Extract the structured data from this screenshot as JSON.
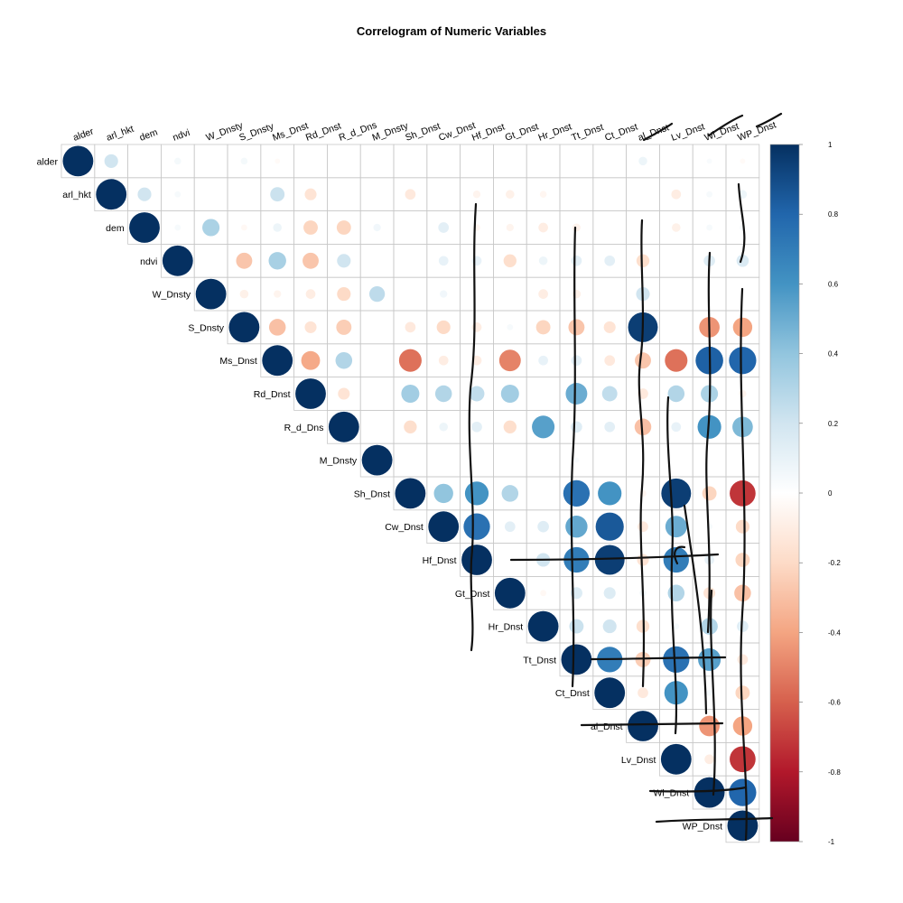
{
  "chart_data": {
    "type": "heatmap",
    "title": "Correlogram of Numeric Variables",
    "variables": [
      "alder",
      "arl_hkt",
      "dem",
      "ndvi",
      "W_Dnsty",
      "S_Dnsty",
      "Ms_Dnst",
      "Rd_Dnst",
      "R_d_Dns",
      "M_Dnsty",
      "Sh_Dnst",
      "Cw_Dnst",
      "Hf_Dnst",
      "Gt_Dnst",
      "Hr_Dnst",
      "Tt_Dnst",
      "Ct_Dnst",
      "al_Dnst",
      "Lv_Dnst",
      "Wl_Dnst",
      "WP_Dnst"
    ],
    "layout": "upper-triangle",
    "colorbar": {
      "range": [
        -1,
        1
      ],
      "ticks": [
        "1",
        "0.8",
        "0.6",
        "0.4",
        "0.2",
        "0",
        "-0.2",
        "-0.4",
        "-0.6",
        "-0.8",
        "-1"
      ]
    },
    "matrix": [
      [
        1,
        0.2,
        0,
        0.05,
        0,
        0.05,
        -0.03,
        0,
        0,
        0,
        0,
        0,
        0,
        0,
        0,
        0,
        0,
        0.08,
        0,
        0.03,
        -0.03
      ],
      [
        0.2,
        1,
        0.2,
        0.04,
        0,
        0,
        0.22,
        -0.15,
        0,
        0,
        -0.12,
        0,
        -0.06,
        -0.08,
        -0.05,
        0,
        0,
        0,
        -0.1,
        0.04,
        0.08
      ],
      [
        0,
        0.2,
        1,
        0.04,
        0.32,
        -0.04,
        0.08,
        -0.22,
        -0.22,
        0.06,
        0,
        0.12,
        -0.05,
        -0.06,
        -0.1,
        -0.07,
        0,
        0,
        -0.08,
        0.04,
        0.04
      ],
      [
        0.05,
        0.04,
        0.04,
        1,
        0,
        -0.28,
        0.33,
        -0.28,
        0.2,
        0,
        0,
        0.1,
        0.1,
        -0.18,
        0.08,
        0.12,
        0.12,
        -0.18,
        0,
        0.14,
        0.16
      ],
      [
        0,
        0,
        0.32,
        0,
        1,
        -0.08,
        -0.06,
        -0.1,
        -0.2,
        0.26,
        0,
        0.06,
        0,
        0,
        -0.1,
        -0.08,
        0,
        0.2,
        0,
        0,
        0
      ],
      [
        0.05,
        0,
        -0.04,
        -0.28,
        -0.08,
        1,
        -0.3,
        -0.15,
        -0.25,
        0,
        -0.12,
        -0.2,
        -0.1,
        0.04,
        -0.22,
        -0.28,
        -0.15,
        0.95,
        0,
        -0.45,
        -0.4
      ],
      [
        -0.03,
        0.22,
        0.08,
        0.33,
        -0.06,
        -0.3,
        1,
        -0.38,
        0.3,
        0,
        -0.55,
        -0.1,
        -0.1,
        -0.5,
        0.1,
        0.12,
        -0.12,
        -0.28,
        -0.55,
        0.82,
        0.8
      ],
      [
        0,
        -0.15,
        -0.22,
        -0.28,
        -0.1,
        -0.15,
        -0.38,
        1,
        -0.15,
        0,
        0.35,
        0.3,
        0.25,
        0.35,
        0,
        0.5,
        0.25,
        -0.12,
        0.3,
        0.32,
        -0.06
      ],
      [
        0,
        0,
        -0.22,
        0.2,
        -0.2,
        -0.25,
        0.3,
        -0.15,
        1,
        0,
        -0.18,
        0.08,
        0.12,
        -0.18,
        0.55,
        0.14,
        0.12,
        -0.3,
        0.1,
        0.6,
        0.45
      ],
      [
        0,
        0,
        0.06,
        0,
        0.26,
        0,
        0,
        0,
        0,
        1,
        0,
        0,
        0,
        0,
        0,
        0.03,
        0,
        0,
        0,
        0,
        0
      ],
      [
        0,
        -0.12,
        0,
        0,
        0,
        -0.12,
        -0.55,
        0.35,
        -0.18,
        0,
        1,
        0.4,
        0.6,
        0.3,
        0,
        0.75,
        0.6,
        -0.05,
        0.95,
        -0.22,
        -0.72
      ],
      [
        0,
        0,
        0.12,
        0.1,
        0.06,
        -0.2,
        -0.1,
        0.3,
        0.08,
        0,
        0.4,
        1,
        0.75,
        0.12,
        0.14,
        0.52,
        0.85,
        -0.12,
        0.5,
        0.04,
        -0.2
      ],
      [
        0,
        -0.06,
        -0.05,
        0.1,
        0,
        -0.1,
        -0.1,
        0.25,
        0.12,
        0,
        0.6,
        0.75,
        1,
        0,
        0.2,
        0.7,
        0.95,
        -0.15,
        0.7,
        0.1,
        -0.22
      ],
      [
        0,
        -0.08,
        -0.06,
        -0.18,
        0,
        0.04,
        -0.5,
        0.35,
        -0.18,
        0,
        0.3,
        0.12,
        0,
        1,
        -0.04,
        0.15,
        0.15,
        0.05,
        0.3,
        -0.15,
        -0.3
      ],
      [
        0,
        -0.05,
        -0.1,
        0.08,
        -0.1,
        -0.22,
        0.1,
        0,
        0.55,
        0,
        0,
        0.14,
        0.2,
        -0.04,
        1,
        0.22,
        0.2,
        -0.18,
        0.04,
        0.3,
        0.14
      ],
      [
        0,
        0,
        -0.07,
        0.12,
        -0.08,
        -0.28,
        0.12,
        0.5,
        0.14,
        0.03,
        0.75,
        0.52,
        0.7,
        0.15,
        0.22,
        1,
        0.7,
        -0.25,
        0.75,
        0.55,
        -0.12
      ],
      [
        0,
        0,
        0,
        0.12,
        0,
        -0.15,
        -0.12,
        0.25,
        0.12,
        0,
        0.6,
        0.85,
        0.95,
        0.15,
        0.2,
        0.7,
        1,
        -0.12,
        0.6,
        0.04,
        -0.22
      ],
      [
        0.08,
        0,
        0,
        -0.18,
        0.2,
        0.95,
        -0.28,
        -0.12,
        -0.3,
        0,
        -0.05,
        -0.12,
        -0.15,
        0.05,
        -0.18,
        -0.25,
        -0.12,
        1,
        0,
        -0.45,
        -0.4
      ],
      [
        0,
        -0.1,
        -0.08,
        0,
        0,
        0,
        -0.55,
        0.3,
        0.1,
        0,
        0.95,
        0.5,
        0.7,
        0.3,
        0.04,
        0.75,
        0.6,
        0,
        1,
        -0.1,
        -0.72
      ],
      [
        0.03,
        0.04,
        0.04,
        0.14,
        0,
        -0.45,
        0.82,
        0.32,
        0.6,
        0,
        -0.22,
        0.04,
        0.1,
        -0.15,
        0.3,
        0.55,
        0.04,
        -0.45,
        -0.1,
        1,
        0.8
      ],
      [
        -0.03,
        0.08,
        0.04,
        0.16,
        0,
        -0.4,
        0.8,
        -0.06,
        0.45,
        0,
        -0.72,
        -0.2,
        -0.22,
        -0.3,
        0.14,
        -0.12,
        -0.22,
        -0.4,
        -0.72,
        0.8,
        1
      ]
    ]
  }
}
